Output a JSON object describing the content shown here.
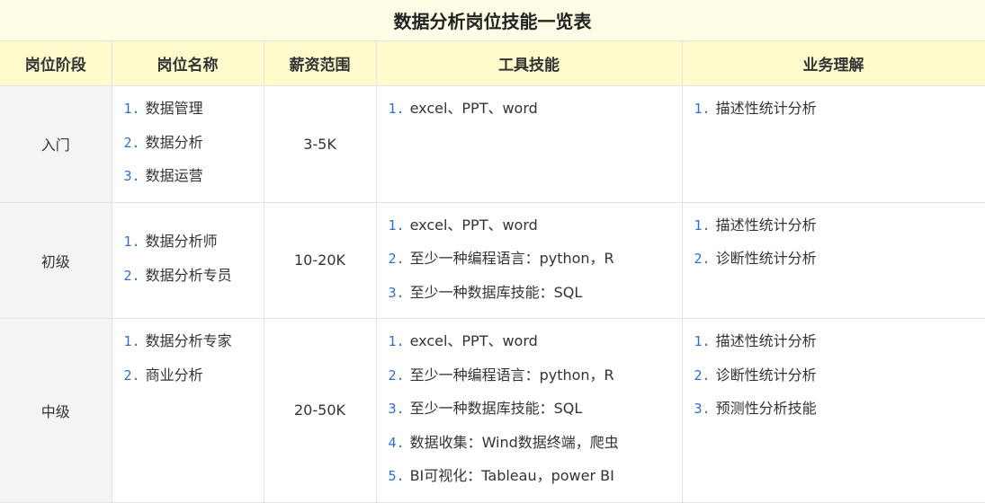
{
  "title": "数据分析岗位技能一览表",
  "headers": [
    "岗位阶段",
    "岗位名称",
    "薪资范围",
    "工具技能",
    "业务理解"
  ],
  "rows": [
    {
      "stage": "入门",
      "names": [
        "数据管理",
        "数据分析",
        "数据运营"
      ],
      "salary": "3-5K",
      "tools": [
        "excel、PPT、word"
      ],
      "business": [
        "描述性统计分析"
      ]
    },
    {
      "stage": "初级",
      "names": [
        "数据分析师",
        "数据分析专员"
      ],
      "salary": "10-20K",
      "tools": [
        "excel、PPT、word",
        "至少一种编程语言：python，R",
        "至少一种数据库技能：SQL"
      ],
      "business": [
        "描述性统计分析",
        "诊断性统计分析"
      ]
    },
    {
      "stage": "中级",
      "names": [
        "数据分析专家",
        "商业分析"
      ],
      "salary": "20-50K",
      "tools": [
        "excel、PPT、word",
        "至少一种编程语言：python，R",
        "至少一种数据库技能：SQL",
        "数据收集：Wind数据终端，爬虫",
        "BI可视化：Tableau，power BI"
      ],
      "business": [
        "描述性统计分析",
        "诊断性统计分析",
        "预测性分析技能"
      ]
    }
  ],
  "colors": {
    "header_bg": "#fffbcc",
    "title_bg": "#fffde6",
    "number_color": "#2a6fd6",
    "stage_bg": "#f3f4f6"
  }
}
